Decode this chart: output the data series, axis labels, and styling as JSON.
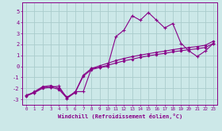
{
  "xlabel": "Windchill (Refroidissement éolien,°C)",
  "background_color": "#cce8e8",
  "grid_color": "#aacccc",
  "line_color": "#880088",
  "x_values": [
    0,
    1,
    2,
    3,
    4,
    5,
    6,
    7,
    8,
    9,
    10,
    11,
    12,
    13,
    14,
    15,
    16,
    17,
    18,
    19,
    20,
    21,
    22,
    23
  ],
  "line1_y": [
    -2.6,
    -2.4,
    -1.9,
    -1.9,
    -1.8,
    -2.9,
    -2.3,
    -2.3,
    -0.2,
    -0.1,
    0.0,
    2.7,
    3.3,
    4.6,
    4.2,
    4.9,
    4.2,
    3.5,
    3.9,
    2.1,
    1.4,
    0.9,
    1.4,
    2.1
  ],
  "line2_y": [
    -2.7,
    -2.4,
    -2.0,
    -1.9,
    -2.1,
    -2.9,
    -2.4,
    -0.9,
    -0.3,
    -0.1,
    0.1,
    0.3,
    0.5,
    0.65,
    0.82,
    0.95,
    1.08,
    1.18,
    1.32,
    1.42,
    1.52,
    1.6,
    1.72,
    2.1
  ],
  "line3_y": [
    -2.7,
    -2.3,
    -1.85,
    -1.75,
    -2.0,
    -2.8,
    -2.35,
    -0.8,
    -0.2,
    0.05,
    0.28,
    0.52,
    0.72,
    0.88,
    1.02,
    1.15,
    1.28,
    1.38,
    1.52,
    1.62,
    1.72,
    1.8,
    1.92,
    2.3
  ],
  "ylim": [
    -3.5,
    5.8
  ],
  "xlim": [
    -0.5,
    23.5
  ]
}
